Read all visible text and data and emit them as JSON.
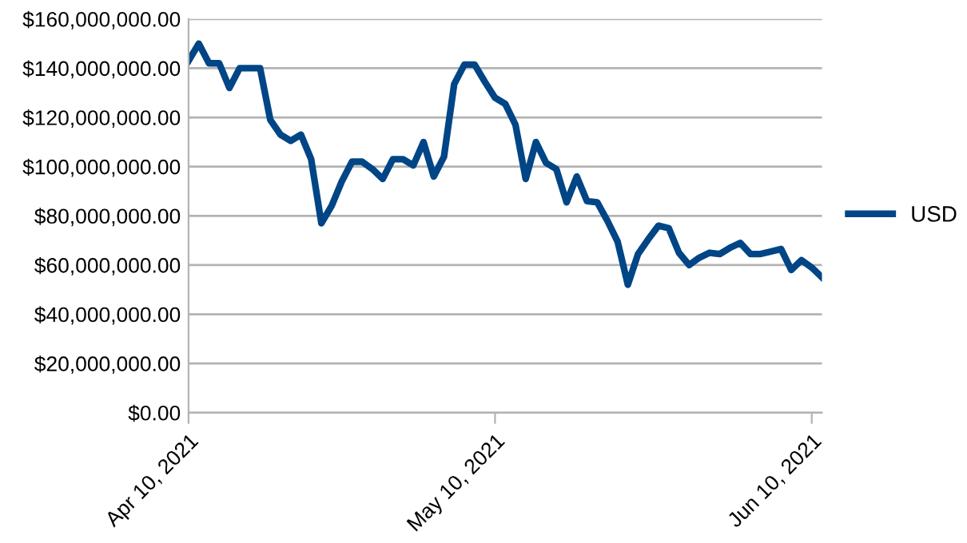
{
  "chart_data": {
    "type": "line",
    "x": [
      "2021-04-10",
      "2021-04-11",
      "2021-04-12",
      "2021-04-13",
      "2021-04-14",
      "2021-04-15",
      "2021-04-16",
      "2021-04-17",
      "2021-04-18",
      "2021-04-19",
      "2021-04-20",
      "2021-04-21",
      "2021-04-22",
      "2021-04-23",
      "2021-04-24",
      "2021-04-25",
      "2021-04-26",
      "2021-04-27",
      "2021-04-28",
      "2021-04-29",
      "2021-04-30",
      "2021-05-01",
      "2021-05-02",
      "2021-05-03",
      "2021-05-04",
      "2021-05-05",
      "2021-05-06",
      "2021-05-07",
      "2021-05-08",
      "2021-05-09",
      "2021-05-10",
      "2021-05-11",
      "2021-05-12",
      "2021-05-13",
      "2021-05-14",
      "2021-05-15",
      "2021-05-16",
      "2021-05-17",
      "2021-05-18",
      "2021-05-19",
      "2021-05-20",
      "2021-05-21",
      "2021-05-22",
      "2021-05-23",
      "2021-05-24",
      "2021-05-25",
      "2021-05-26",
      "2021-05-27",
      "2021-05-28",
      "2021-05-29",
      "2021-05-30",
      "2021-05-31",
      "2021-06-01",
      "2021-06-02",
      "2021-06-03",
      "2021-06-04",
      "2021-06-05",
      "2021-06-06",
      "2021-06-07",
      "2021-06-08",
      "2021-06-09",
      "2021-06-10",
      "2021-06-11"
    ],
    "series": [
      {
        "name": "USD",
        "color": "#004586",
        "values": [
          143000000,
          150000000,
          142000000,
          142000000,
          132000000,
          140000000,
          140000000,
          140000000,
          119000000,
          113000000,
          110500000,
          113000000,
          103000000,
          77000000,
          84000000,
          94000000,
          102000000,
          102000000,
          99000000,
          95000000,
          103000000,
          103000000,
          100500000,
          110000000,
          96000000,
          104000000,
          133500000,
          141500000,
          141500000,
          134500000,
          128000000,
          125500000,
          117000000,
          95000000,
          110000000,
          101500000,
          99000000,
          85500000,
          96000000,
          86000000,
          85500000,
          78000000,
          69500000,
          52000000,
          64500000,
          70500000,
          76000000,
          75000000,
          65000000,
          60000000,
          63000000,
          65000000,
          64500000,
          67000000,
          69000000,
          64500000,
          64500000,
          65500000,
          66500000,
          58000000,
          62000000,
          59000000,
          55000000
        ]
      }
    ],
    "xlim": [
      "2021-04-10",
      "2021-06-11"
    ],
    "xticks": [
      {
        "value": "2021-04-10",
        "label": "Apr 10, 2021"
      },
      {
        "value": "2021-05-10",
        "label": "May 10, 2021"
      },
      {
        "value": "2021-06-10",
        "label": "Jun 10, 2021"
      }
    ],
    "ylim": [
      0,
      160000000
    ],
    "yticks": [
      {
        "value": 0,
        "label": "$0.00"
      },
      {
        "value": 20000000,
        "label": "$20,000,000.00"
      },
      {
        "value": 40000000,
        "label": "$40,000,000.00"
      },
      {
        "value": 60000000,
        "label": "$60,000,000.00"
      },
      {
        "value": 80000000,
        "label": "$80,000,000.00"
      },
      {
        "value": 100000000,
        "label": "$100,000,000.00"
      },
      {
        "value": 120000000,
        "label": "$120,000,000.00"
      },
      {
        "value": 140000000,
        "label": "$140,000,000.00"
      },
      {
        "value": 160000000,
        "label": "$160,000,000.00"
      }
    ],
    "grid": "y",
    "legend": "right",
    "marker": "none",
    "line_style": "solid"
  }
}
